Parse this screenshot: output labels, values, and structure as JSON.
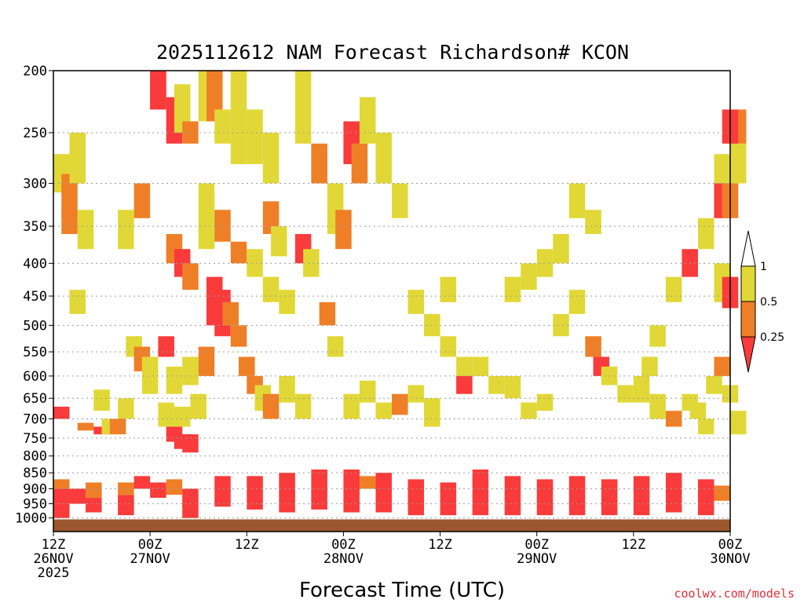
{
  "chart_data": {
    "type": "heatmap",
    "title": "2025112612 NAM Forecast Richardson# KCON",
    "xlabel": "Forecast Time (UTC)",
    "ylabel": "",
    "credit": "coolwx.com/models",
    "x_hours": [
      0,
      84
    ],
    "y_range_hpa": [
      1050,
      200
    ],
    "y_ticks": [
      200,
      250,
      300,
      350,
      400,
      450,
      500,
      550,
      600,
      650,
      700,
      750,
      800,
      850,
      900,
      950,
      1000
    ],
    "x_ticks": [
      {
        "hour": 0,
        "line1": "12Z",
        "line2": "26NOV",
        "line3": "2025"
      },
      {
        "hour": 12,
        "line1": "00Z",
        "line2": "27NOV",
        "line3": ""
      },
      {
        "hour": 24,
        "line1": "12Z",
        "line2": "",
        "line3": ""
      },
      {
        "hour": 36,
        "line1": "00Z",
        "line2": "28NOV",
        "line3": ""
      },
      {
        "hour": 48,
        "line1": "12Z",
        "line2": "",
        "line3": ""
      },
      {
        "hour": 60,
        "line1": "00Z",
        "line2": "29NOV",
        "line3": ""
      },
      {
        "hour": 72,
        "line1": "12Z",
        "line2": "",
        "line3": ""
      },
      {
        "hour": 84,
        "line1": "00Z",
        "line2": "30NOV",
        "line3": ""
      }
    ],
    "legend": {
      "labels": [
        "1",
        "0.5",
        "0.25"
      ],
      "bins": [
        {
          "label": "> 1 (white)",
          "color": "#ffffff"
        },
        {
          "label": "0.5 - 1",
          "color": "#e1d837"
        },
        {
          "label": "0.25 - 0.5",
          "color": "#ef7f27"
        },
        {
          "label": "< 0.25",
          "color": "#fa3b3b"
        }
      ]
    },
    "colors": {
      "ground": "#9b5630",
      "gridline": "#9a9a9a",
      "low": "#fa3b3b",
      "mid": "#ef7f27",
      "high": "#e1d837"
    },
    "cells": [
      [
        0,
        950,
        1000,
        0
      ],
      [
        0,
        900,
        950,
        0
      ],
      [
        0,
        870,
        900,
        1
      ],
      [
        2,
        900,
        950,
        0
      ],
      [
        4,
        880,
        930,
        1
      ],
      [
        4,
        930,
        980,
        0
      ],
      [
        8,
        920,
        990,
        0
      ],
      [
        8,
        880,
        920,
        1
      ],
      [
        10,
        860,
        900,
        0
      ],
      [
        12,
        880,
        930,
        0
      ],
      [
        14,
        870,
        920,
        1
      ],
      [
        16,
        900,
        1000,
        0
      ],
      [
        20,
        860,
        960,
        0
      ],
      [
        24,
        860,
        970,
        0
      ],
      [
        28,
        850,
        980,
        0
      ],
      [
        32,
        840,
        970,
        0
      ],
      [
        36,
        840,
        980,
        0
      ],
      [
        38,
        860,
        900,
        1
      ],
      [
        40,
        850,
        980,
        0
      ],
      [
        44,
        870,
        990,
        0
      ],
      [
        48,
        880,
        990,
        0
      ],
      [
        52,
        840,
        990,
        0
      ],
      [
        56,
        860,
        990,
        0
      ],
      [
        60,
        870,
        990,
        0
      ],
      [
        64,
        860,
        990,
        0
      ],
      [
        68,
        870,
        990,
        0
      ],
      [
        72,
        860,
        990,
        0
      ],
      [
        76,
        850,
        980,
        0
      ],
      [
        80,
        870,
        990,
        0
      ],
      [
        82,
        890,
        940,
        1
      ],
      [
        0,
        270,
        310,
        2
      ],
      [
        1,
        290,
        340,
        1
      ],
      [
        1,
        330,
        360,
        1
      ],
      [
        2,
        250,
        300,
        2
      ],
      [
        3,
        330,
        380,
        2
      ],
      [
        2,
        440,
        480,
        2
      ],
      [
        0,
        670,
        700,
        0
      ],
      [
        3,
        710,
        730,
        1
      ],
      [
        5,
        720,
        740,
        0
      ],
      [
        6,
        700,
        740,
        2
      ],
      [
        7,
        700,
        740,
        1
      ],
      [
        8,
        650,
        700,
        2
      ],
      [
        5,
        630,
        680,
        2
      ],
      [
        9,
        520,
        560,
        2
      ],
      [
        10,
        540,
        590,
        1
      ],
      [
        11,
        560,
        600,
        2
      ],
      [
        11,
        600,
        640,
        2
      ],
      [
        13,
        520,
        560,
        0
      ],
      [
        13,
        660,
        720,
        2
      ],
      [
        14,
        720,
        760,
        0
      ],
      [
        15,
        740,
        780,
        0
      ],
      [
        16,
        740,
        790,
        0
      ],
      [
        15,
        670,
        720,
        2
      ],
      [
        17,
        640,
        700,
        2
      ],
      [
        12,
        200,
        230,
        1
      ],
      [
        12,
        200,
        230,
        0
      ],
      [
        14,
        220,
        260,
        0
      ],
      [
        15,
        210,
        250,
        2
      ],
      [
        16,
        240,
        260,
        1
      ],
      [
        18,
        200,
        240,
        2
      ],
      [
        19,
        200,
        240,
        1
      ],
      [
        20,
        230,
        260,
        2
      ],
      [
        22,
        200,
        280,
        2
      ],
      [
        24,
        230,
        280,
        2
      ],
      [
        26,
        250,
        300,
        2
      ],
      [
        14,
        360,
        400,
        1
      ],
      [
        15,
        380,
        420,
        0
      ],
      [
        16,
        400,
        440,
        1
      ],
      [
        19,
        420,
        500,
        0
      ],
      [
        20,
        440,
        520,
        0
      ],
      [
        21,
        460,
        500,
        1
      ],
      [
        22,
        500,
        540,
        1
      ],
      [
        23,
        560,
        600,
        1
      ],
      [
        24,
        600,
        640,
        1
      ],
      [
        25,
        620,
        680,
        2
      ],
      [
        26,
        640,
        700,
        1
      ],
      [
        28,
        600,
        660,
        2
      ],
      [
        30,
        640,
        700,
        2
      ],
      [
        18,
        300,
        380,
        2
      ],
      [
        20,
        330,
        370,
        1
      ],
      [
        22,
        370,
        400,
        1
      ],
      [
        24,
        380,
        420,
        2
      ],
      [
        26,
        420,
        460,
        2
      ],
      [
        28,
        440,
        480,
        2
      ],
      [
        30,
        360,
        400,
        0
      ],
      [
        31,
        380,
        420,
        2
      ],
      [
        33,
        460,
        500,
        1
      ],
      [
        34,
        520,
        560,
        2
      ],
      [
        36,
        640,
        700,
        2
      ],
      [
        38,
        610,
        660,
        2
      ],
      [
        40,
        660,
        700,
        2
      ],
      [
        42,
        640,
        690,
        1
      ],
      [
        44,
        620,
        660,
        2
      ],
      [
        46,
        650,
        720,
        2
      ],
      [
        30,
        200,
        260,
        2
      ],
      [
        32,
        260,
        300,
        1
      ],
      [
        34,
        300,
        360,
        2
      ],
      [
        35,
        330,
        380,
        1
      ],
      [
        36,
        240,
        280,
        0
      ],
      [
        37,
        260,
        300,
        1
      ],
      [
        38,
        220,
        260,
        2
      ],
      [
        40,
        250,
        300,
        2
      ],
      [
        42,
        300,
        340,
        2
      ],
      [
        44,
        440,
        480,
        2
      ],
      [
        46,
        480,
        520,
        2
      ],
      [
        48,
        520,
        560,
        2
      ],
      [
        48,
        420,
        460,
        2
      ],
      [
        50,
        560,
        600,
        2
      ],
      [
        50,
        600,
        640,
        0
      ],
      [
        52,
        560,
        600,
        2
      ],
      [
        54,
        600,
        640,
        2
      ],
      [
        56,
        600,
        650,
        2
      ],
      [
        58,
        660,
        700,
        2
      ],
      [
        60,
        640,
        680,
        2
      ],
      [
        62,
        480,
        520,
        2
      ],
      [
        64,
        440,
        480,
        2
      ],
      [
        66,
        520,
        560,
        1
      ],
      [
        67,
        560,
        600,
        0
      ],
      [
        68,
        580,
        620,
        2
      ],
      [
        70,
        620,
        660,
        2
      ],
      [
        72,
        600,
        660,
        2
      ],
      [
        74,
        640,
        700,
        2
      ],
      [
        76,
        680,
        720,
        1
      ],
      [
        78,
        640,
        680,
        2
      ],
      [
        79,
        660,
        700,
        2
      ],
      [
        80,
        700,
        740,
        2
      ],
      [
        81,
        600,
        640,
        2
      ],
      [
        82,
        560,
        600,
        1
      ],
      [
        83,
        620,
        660,
        2
      ],
      [
        84,
        680,
        740,
        2
      ],
      [
        82,
        400,
        460,
        2
      ],
      [
        83,
        420,
        470,
        0
      ],
      [
        82,
        300,
        340,
        0
      ],
      [
        83,
        300,
        340,
        1
      ],
      [
        84,
        260,
        300,
        2
      ],
      [
        84,
        230,
        260,
        1
      ],
      [
        83,
        230,
        260,
        0
      ],
      [
        82,
        270,
        300,
        2
      ],
      [
        80,
        340,
        380,
        2
      ],
      [
        78,
        380,
        420,
        0
      ],
      [
        76,
        420,
        460,
        2
      ],
      [
        74,
        500,
        540,
        2
      ],
      [
        73,
        560,
        600,
        2
      ],
      [
        66,
        330,
        360,
        2
      ],
      [
        64,
        300,
        340,
        2
      ],
      [
        62,
        360,
        400,
        2
      ],
      [
        60,
        380,
        420,
        2
      ],
      [
        58,
        400,
        440,
        2
      ],
      [
        56,
        420,
        460,
        2
      ],
      [
        18,
        540,
        600,
        1
      ],
      [
        16,
        560,
        620,
        2
      ],
      [
        14,
        580,
        640,
        2
      ],
      [
        26,
        320,
        360,
        1
      ],
      [
        27,
        350,
        390,
        2
      ],
      [
        10,
        300,
        340,
        1
      ],
      [
        8,
        330,
        380,
        2
      ]
    ]
  }
}
